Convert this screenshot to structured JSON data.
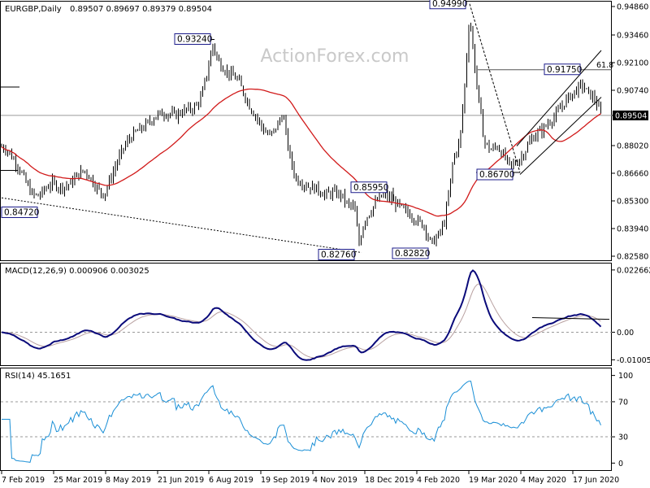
{
  "chart_data": {
    "type": "candlestick",
    "symbol_label": "EURGBP,Daily",
    "ohlc_label": "0.89507 0.89697 0.89379 0.89504",
    "watermark": "ActionForex.com",
    "x_labels": [
      "7 Feb 2019",
      "25 Mar 2019",
      "8 May 2019",
      "21 Jun 2019",
      "6 Aug 2019",
      "19 Sep 2019",
      "4 Nov 2019",
      "18 Dec 2019",
      "4 Feb 2020",
      "19 Mar 2020",
      "4 May 2020",
      "17 Jun 2020"
    ],
    "price": {
      "y_ticks": [
        "0.94860",
        "0.93460",
        "0.92100",
        "0.90740",
        "0.89504",
        "0.88020",
        "0.86660",
        "0.85300",
        "0.83940",
        "0.82580"
      ],
      "current_price": "0.89504",
      "fib_label": "61.8",
      "annotations": [
        "0.94990",
        "0.93240",
        "0.91750",
        "0.86700",
        "0.85950",
        "0.84720",
        "0.82760",
        "0.82820"
      ],
      "close_path": [
        [
          0,
          0.88
        ],
        [
          8,
          0.8785
        ],
        [
          16,
          0.874
        ],
        [
          24,
          0.869
        ],
        [
          32,
          0.862
        ],
        [
          40,
          0.856
        ],
        [
          48,
          0.8555
        ],
        [
          56,
          0.859
        ],
        [
          64,
          0.862
        ],
        [
          72,
          0.86
        ],
        [
          80,
          0.86
        ],
        [
          88,
          0.862
        ],
        [
          96,
          0.866
        ],
        [
          104,
          0.868
        ],
        [
          112,
          0.864
        ],
        [
          120,
          0.859
        ],
        [
          128,
          0.856
        ],
        [
          136,
          0.864
        ],
        [
          144,
          0.872
        ],
        [
          152,
          0.879
        ],
        [
          160,
          0.884
        ],
        [
          168,
          0.887
        ],
        [
          176,
          0.889
        ],
        [
          184,
          0.892
        ],
        [
          192,
          0.895
        ],
        [
          200,
          0.896
        ],
        [
          208,
          0.896
        ],
        [
          216,
          0.895
        ],
        [
          224,
          0.897
        ],
        [
          232,
          0.898
        ],
        [
          240,
          0.899
        ],
        [
          248,
          0.904
        ],
        [
          256,
          0.918
        ],
        [
          262,
          0.93
        ],
        [
          268,
          0.922
        ],
        [
          276,
          0.918
        ],
        [
          284,
          0.915
        ],
        [
          292,
          0.913
        ],
        [
          300,
          0.906
        ],
        [
          308,
          0.899
        ],
        [
          316,
          0.894
        ],
        [
          324,
          0.888
        ],
        [
          332,
          0.885
        ],
        [
          340,
          0.889
        ],
        [
          348,
          0.896
        ],
        [
          356,
          0.876
        ],
        [
          364,
          0.864
        ],
        [
          372,
          0.862
        ],
        [
          380,
          0.86
        ],
        [
          390,
          0.859
        ],
        [
          400,
          0.856
        ],
        [
          410,
          0.857
        ],
        [
          420,
          0.856
        ],
        [
          428,
          0.851
        ],
        [
          436,
          0.85
        ],
        [
          442,
          0.832
        ],
        [
          448,
          0.843
        ],
        [
          456,
          0.848
        ],
        [
          464,
          0.853
        ],
        [
          472,
          0.856
        ],
        [
          480,
          0.854
        ],
        [
          490,
          0.851
        ],
        [
          498,
          0.848
        ],
        [
          506,
          0.846
        ],
        [
          514,
          0.843
        ],
        [
          522,
          0.841
        ],
        [
          530,
          0.832
        ],
        [
          538,
          0.835
        ],
        [
          546,
          0.841
        ],
        [
          552,
          0.855
        ],
        [
          558,
          0.874
        ],
        [
          566,
          0.882
        ],
        [
          572,
          0.91
        ],
        [
          578,
          0.945
        ],
        [
          584,
          0.92
        ],
        [
          590,
          0.9
        ],
        [
          596,
          0.882
        ],
        [
          604,
          0.878
        ],
        [
          612,
          0.88
        ],
        [
          620,
          0.875
        ],
        [
          628,
          0.87
        ],
        [
          636,
          0.872
        ],
        [
          644,
          0.876
        ],
        [
          652,
          0.882
        ],
        [
          660,
          0.886
        ],
        [
          668,
          0.888
        ],
        [
          676,
          0.892
        ],
        [
          684,
          0.895
        ],
        [
          692,
          0.9
        ],
        [
          700,
          0.904
        ],
        [
          708,
          0.907
        ],
        [
          716,
          0.91
        ],
        [
          724,
          0.906
        ],
        [
          732,
          0.903
        ],
        [
          740,
          0.895
        ]
      ]
    },
    "macd": {
      "label": "MACD(12,26,9) 0.000906 0.003025",
      "y_ticks": [
        "0.022662",
        "0.00",
        "-0.010052"
      ]
    },
    "rsi": {
      "label": "RSI(14) 45.1651",
      "y_ticks": [
        "100",
        "70",
        "30",
        "0"
      ],
      "levels": [
        70,
        30
      ]
    }
  }
}
